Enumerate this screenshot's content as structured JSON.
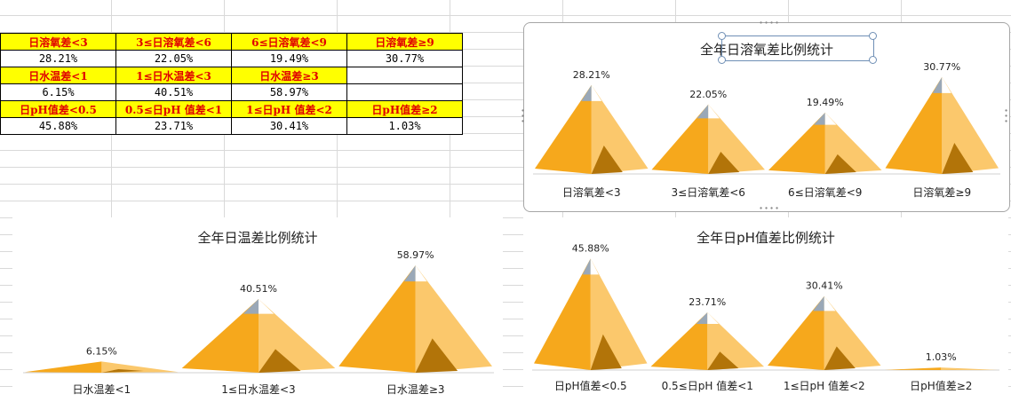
{
  "table": {
    "rows": [
      {
        "type": "header",
        "cells": [
          "日溶氧差<3",
          "3≤日溶氧差<6",
          "6≤日溶氧差<9",
          "日溶氧差≥9"
        ]
      },
      {
        "type": "value",
        "cells": [
          "28.21%",
          "22.05%",
          "19.49%",
          "30.77%"
        ]
      },
      {
        "type": "header",
        "cells": [
          "日水温差<1",
          "1≤日水温差<3",
          "日水温差≥3",
          ""
        ]
      },
      {
        "type": "value",
        "cells": [
          "6.15%",
          "40.51%",
          "58.97%",
          ""
        ]
      },
      {
        "type": "header",
        "cells": [
          "日pH值差<0.5",
          "0.5≤日pH 值差<1",
          "1≤日pH 值差<2",
          "日pH值差≥2"
        ]
      },
      {
        "type": "value",
        "cells": [
          "45.88%",
          "23.71%",
          "30.41%",
          "1.03%"
        ]
      }
    ]
  },
  "colors": {
    "front_face": "#f6a81c",
    "side_face": "#fbc86c",
    "shadow": "#b27409",
    "snow": "#ffffff",
    "rock": "#9aa8b7",
    "header_fill": "#ffff00",
    "header_text": "#e00000"
  },
  "chart_data": [
    {
      "id": "do",
      "type": "bar",
      "title": "全年日溶氧差比例统计",
      "categories": [
        "日溶氧差<3",
        "3≤日溶氧差<6",
        "6≤日溶氧差<9",
        "日溶氧差≥9"
      ],
      "values": [
        28.21,
        22.05,
        19.49,
        30.77
      ],
      "labels": [
        "28.21%",
        "22.05%",
        "19.49%",
        "30.77%"
      ],
      "unit": "%",
      "ylim": [
        0,
        31
      ],
      "legend": "none",
      "grid": false,
      "selected": true
    },
    {
      "id": "wt",
      "type": "bar",
      "title": "全年日温差比例统计",
      "categories": [
        "日水温差<1",
        "1≤日水温差<3",
        "日水温差≥3"
      ],
      "values": [
        6.15,
        40.51,
        58.97
      ],
      "labels": [
        "6.15%",
        "40.51%",
        "58.97%"
      ],
      "unit": "%",
      "ylim": [
        0,
        60
      ],
      "legend": "none",
      "grid": false,
      "selected": false
    },
    {
      "id": "ph",
      "type": "bar",
      "title": "全年日pH值差比例统计",
      "categories": [
        "日pH值差<0.5",
        "0.5≤日pH 值差<1",
        "1≤日pH 值差<2",
        "日pH值差≥2"
      ],
      "values": [
        45.88,
        23.71,
        30.41,
        1.03
      ],
      "labels": [
        "45.88%",
        "23.71%",
        "30.41%",
        "1.03%"
      ],
      "unit": "%",
      "ylim": [
        0,
        46
      ],
      "legend": "none",
      "grid": false,
      "selected": false
    }
  ]
}
